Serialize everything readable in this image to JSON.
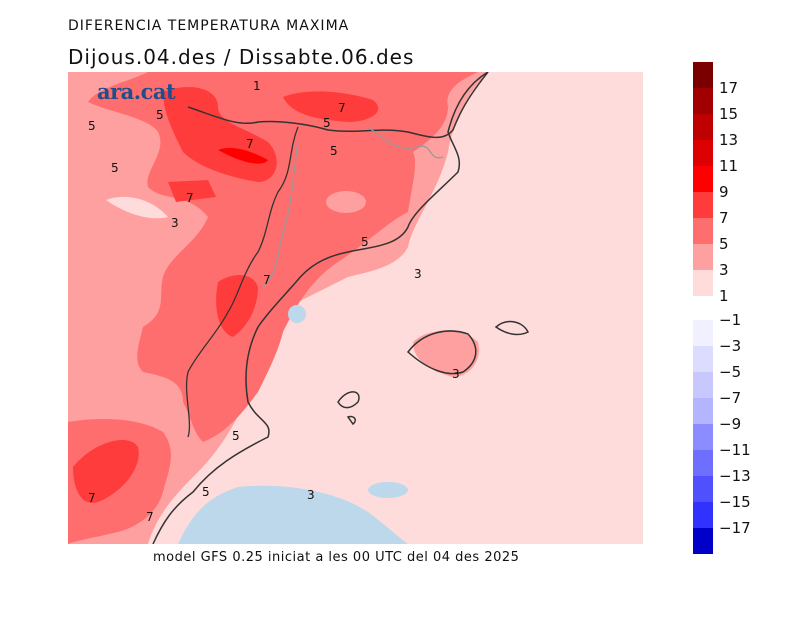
{
  "header": {
    "title": "DIFERENCIA TEMPERATURA MAXIMA",
    "subtitle": "Dijous.04.des / Dissabte.06.des"
  },
  "footer": {
    "text": "model GFS 0.25 iniciat a les 00 UTC del 04 des 2025"
  },
  "logo": {
    "text": "ara.cat"
  },
  "legend": {
    "positive": [
      {
        "color": "#7a0000",
        "label": "17"
      },
      {
        "color": "#a00000",
        "label": "15"
      },
      {
        "color": "#be0000",
        "label": "13"
      },
      {
        "color": "#dc0000",
        "label": "11"
      },
      {
        "color": "#ff0000",
        "label": "9"
      },
      {
        "color": "#ff3c3c",
        "label": "7"
      },
      {
        "color": "#ff6e6e",
        "label": "5"
      },
      {
        "color": "#ffa0a0",
        "label": "3"
      },
      {
        "color": "#ffdcdc",
        "label": "1"
      }
    ],
    "negative": [
      {
        "color": "#f0f0ff",
        "label": "−1"
      },
      {
        "color": "#dcdcff",
        "label": "−3"
      },
      {
        "color": "#c8c8ff",
        "label": "−5"
      },
      {
        "color": "#b4b4ff",
        "label": "−7"
      },
      {
        "color": "#8c8cff",
        "label": "−9"
      },
      {
        "color": "#6e6eff",
        "label": "−11"
      },
      {
        "color": "#5050ff",
        "label": "−13"
      },
      {
        "color": "#3232ff",
        "label": "−15"
      },
      {
        "color": "#0000c8",
        "label": "−17"
      }
    ]
  },
  "contour_labels": [
    "5",
    "5",
    "5",
    "7",
    "7",
    "7",
    "5",
    "5",
    "7",
    "7",
    "3",
    "5",
    "3",
    "3",
    "5",
    "7",
    "5",
    "3",
    "1"
  ]
}
